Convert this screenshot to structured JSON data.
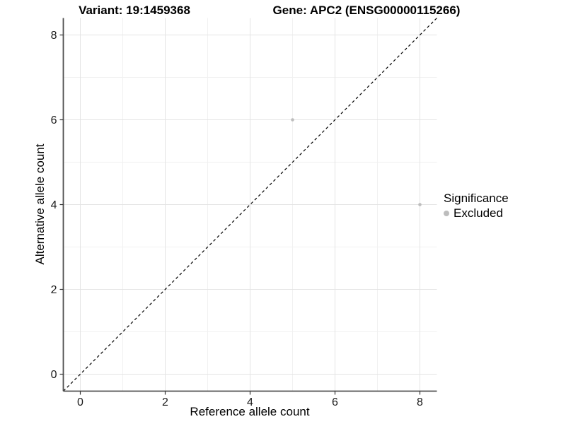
{
  "page": {
    "background": "#ffffff"
  },
  "chart_data": {
    "type": "scatter",
    "title_left": "Variant: 19:1459368",
    "title_right": "Gene: APC2 (ENSG00000115266)",
    "xlabel": "Reference allele count",
    "ylabel": "Alternative allele count",
    "xlim": [
      -0.4,
      8.4
    ],
    "ylim": [
      -0.4,
      8.4
    ],
    "xticks": [
      0,
      2,
      4,
      6,
      8
    ],
    "yticks": [
      0,
      2,
      4,
      6,
      8
    ],
    "minor_gridlines": [
      1,
      3,
      5,
      7
    ],
    "grid": true,
    "identity_line": {
      "style": "dashed",
      "from": [
        -0.4,
        -0.4
      ],
      "to": [
        8.4,
        8.4
      ],
      "color": "#000000"
    },
    "series": [
      {
        "name": "Excluded",
        "color": "#bdbdbd",
        "points": [
          {
            "x": 5,
            "y": 6
          },
          {
            "x": 8,
            "y": 4
          }
        ]
      }
    ],
    "legend": {
      "title": "Significance",
      "position": "right",
      "items": [
        {
          "label": "Excluded",
          "color": "#bdbdbd"
        }
      ]
    },
    "colors": {
      "grid_major": "#e4e4e4",
      "grid_minor": "#f1f1f1",
      "axis_line": "#4f4f4f",
      "tick_mark": "#333333",
      "tick_text": "#1a1a1a",
      "point": "#bdbdbd"
    }
  }
}
